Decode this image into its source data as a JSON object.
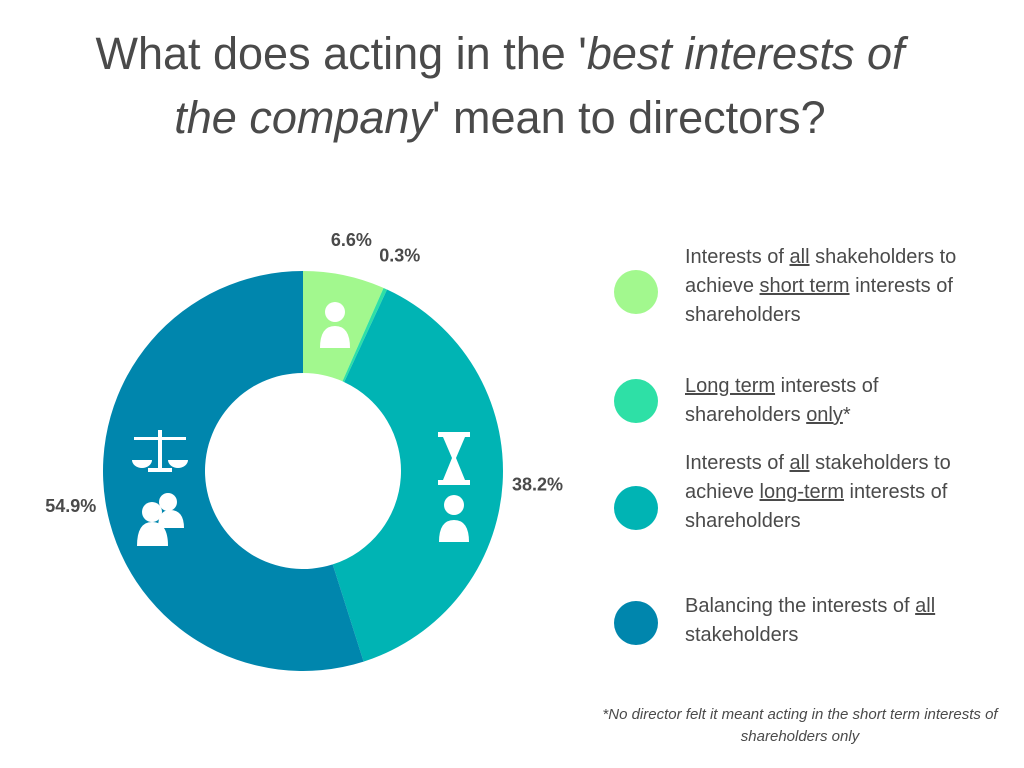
{
  "chart_data": {
    "type": "pie",
    "title": [
      {
        "text": "What does acting in the '",
        "italic": false
      },
      {
        "text": "best interests of the company",
        "italic": true
      },
      {
        "text": "' mean to directors?",
        "italic": false
      }
    ],
    "categories": [
      [
        {
          "text": "Interests of ",
          "underline": false
        },
        {
          "text": "all",
          "underline": true
        },
        {
          "text": " shakeholders to achieve ",
          "underline": false
        },
        {
          "text": "short term",
          "underline": true
        },
        {
          "text": " interests of shareholders",
          "underline": false
        }
      ],
      [
        {
          "text": "Long term",
          "underline": true
        },
        {
          "text": " interests of shareholders ",
          "underline": false
        },
        {
          "text": "only",
          "underline": true
        },
        {
          "text": "*",
          "underline": false
        }
      ],
      [
        {
          "text": "Interests of ",
          "underline": false
        },
        {
          "text": "all",
          "underline": true
        },
        {
          "text": " stakeholders to achieve ",
          "underline": false
        },
        {
          "text": "long-term",
          "underline": true
        },
        {
          "text": " interests of shareholders",
          "underline": false
        }
      ],
      [
        {
          "text": "Balancing the interests of ",
          "underline": false
        },
        {
          "text": "all ",
          "underline": true
        },
        {
          "text": "stakeholders",
          "underline": false
        }
      ]
    ],
    "values": [
      6.6,
      0.3,
      38.2,
      54.9
    ],
    "value_labels": [
      "6.6%",
      "0.3%",
      "38.2%",
      "54.9%"
    ],
    "colors": [
      "#a2f88e",
      "#2ee0a6",
      "#00b4b4",
      "#0086ad"
    ],
    "footnote": "*No director felt it meant acting in the short term interests of shareholders only"
  }
}
